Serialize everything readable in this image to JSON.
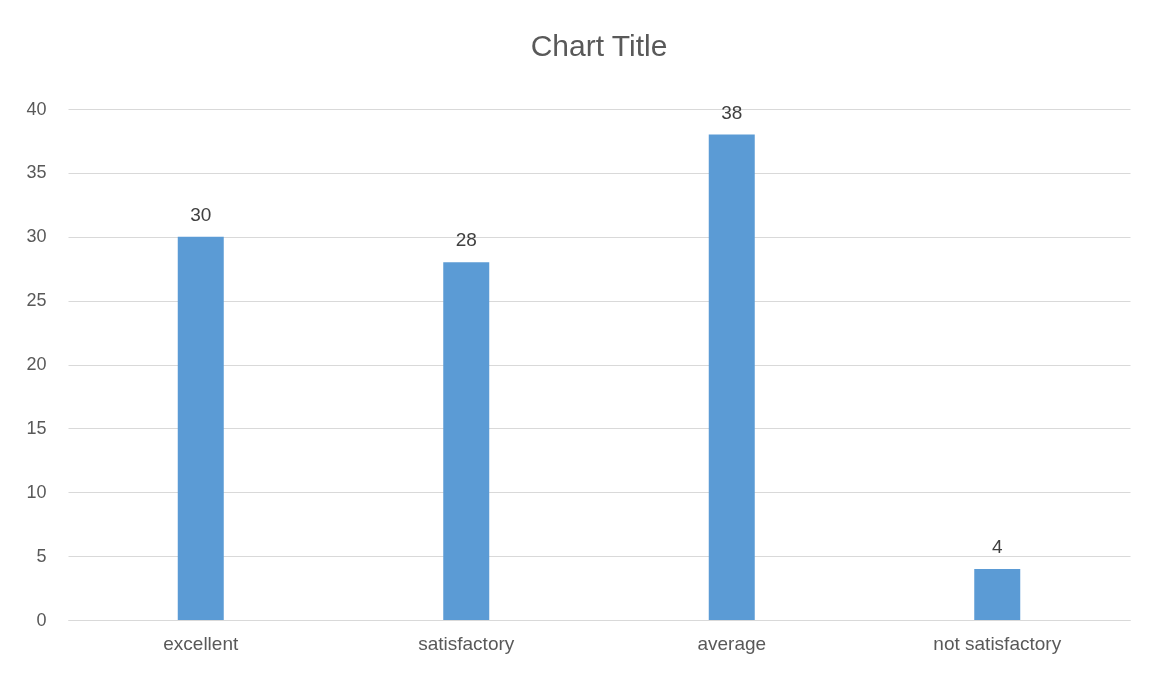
{
  "chart_data": {
    "type": "bar",
    "title": "Chart Title",
    "categories": [
      "excellent",
      "satisfactory",
      "average",
      "not satisfactory"
    ],
    "values": [
      30,
      28,
      38,
      4
    ],
    "color": "#5b9bd5",
    "ylim": [
      0,
      40
    ],
    "yticks": [
      0,
      5,
      10,
      15,
      20,
      25,
      30,
      35,
      40
    ],
    "grid": "y",
    "data_labels": true
  }
}
